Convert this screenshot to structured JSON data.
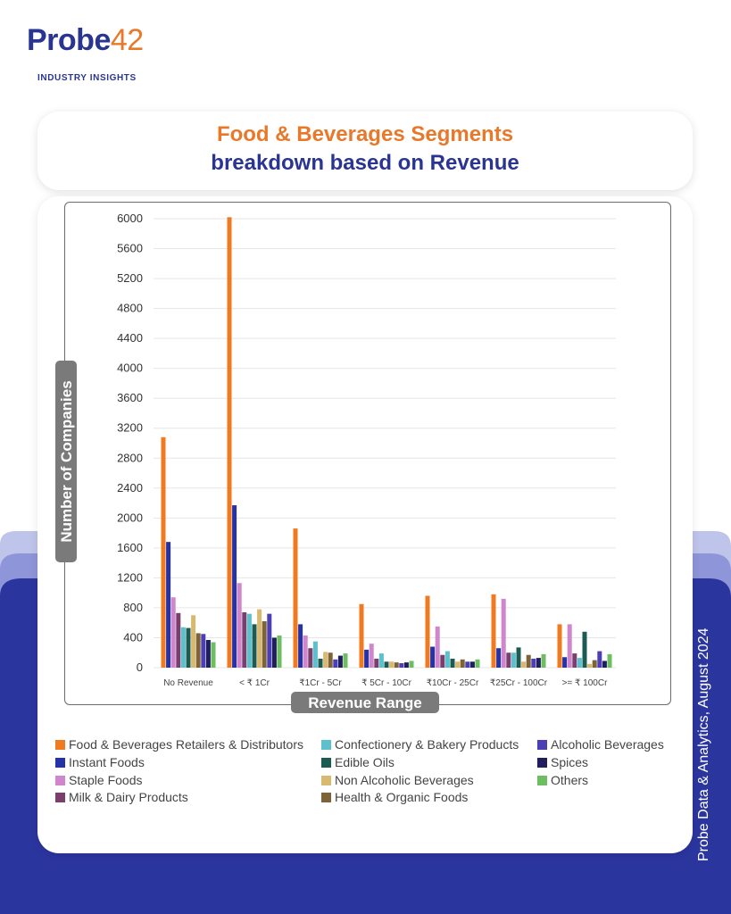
{
  "brand": {
    "logo_prefix": "Probe",
    "logo_number": "42",
    "tagline": "INDUSTRY INSIGHTS"
  },
  "title": {
    "line1": "Food & Beverages Segments",
    "line2": "breakdown based on Revenue"
  },
  "side_caption": "Probe Data & Analytics, August 2024",
  "colors": {
    "brand_blue": "#2a3592",
    "brand_orange": "#e8782a"
  },
  "chart_data": {
    "type": "bar",
    "xlabel": "Revenue Range",
    "ylabel": "Number of Companies",
    "ylim": [
      0,
      6000
    ],
    "yticks": [
      0,
      400,
      800,
      1200,
      1600,
      2000,
      2400,
      2800,
      3200,
      3600,
      4000,
      4400,
      4800,
      5200,
      5600,
      6000
    ],
    "grid": true,
    "legend_position": "bottom",
    "categories": [
      "No Revenue",
      "< ₹ 1Cr",
      "₹1Cr - 5Cr",
      "₹ 5Cr - 10Cr",
      "₹10Cr - 25Cr",
      "₹25Cr - 100Cr",
      ">= ₹ 100Cr"
    ],
    "series": [
      {
        "name": "Food & Beverages Retailers & Distributors",
        "color": "#f07a1f",
        "values": [
          3080,
          6020,
          1860,
          850,
          960,
          980,
          580
        ]
      },
      {
        "name": "Instant Foods",
        "color": "#2532a8",
        "values": [
          1680,
          2170,
          580,
          240,
          280,
          260,
          140
        ]
      },
      {
        "name": "Staple Foods",
        "color": "#cf86cc",
        "values": [
          940,
          1130,
          430,
          320,
          550,
          920,
          580
        ]
      },
      {
        "name": "Milk & Dairy Products",
        "color": "#7b3f6e",
        "values": [
          730,
          740,
          260,
          120,
          170,
          200,
          190
        ]
      },
      {
        "name": "Confectionery & Bakery Products",
        "color": "#5cc1cd",
        "values": [
          540,
          720,
          350,
          190,
          220,
          200,
          130
        ]
      },
      {
        "name": "Edible Oils",
        "color": "#1c5b52",
        "values": [
          530,
          580,
          120,
          80,
          120,
          270,
          480
        ]
      },
      {
        "name": "Non Alcoholic Beverages",
        "color": "#d9b870",
        "values": [
          700,
          780,
          210,
          80,
          80,
          80,
          50
        ]
      },
      {
        "name": "Health & Organic Foods",
        "color": "#7d6336",
        "values": [
          460,
          620,
          200,
          70,
          110,
          170,
          100
        ]
      },
      {
        "name": "Alcoholic Beverages",
        "color": "#4b3fb6",
        "values": [
          450,
          720,
          110,
          60,
          80,
          120,
          220
        ]
      },
      {
        "name": "Spices",
        "color": "#201e5c",
        "values": [
          370,
          400,
          160,
          70,
          80,
          130,
          90
        ]
      },
      {
        "name": "Others",
        "color": "#6dbe60",
        "values": [
          340,
          430,
          190,
          90,
          110,
          180,
          180
        ]
      }
    ]
  },
  "legend_layout": [
    {
      "series": 0,
      "col": 0,
      "row": 0
    },
    {
      "series": 4,
      "col": 1,
      "row": 0
    },
    {
      "series": 8,
      "col": 2,
      "row": 0
    },
    {
      "series": 1,
      "col": 0,
      "row": 1
    },
    {
      "series": 5,
      "col": 1,
      "row": 1
    },
    {
      "series": 9,
      "col": 2,
      "row": 1
    },
    {
      "series": 2,
      "col": 0,
      "row": 2
    },
    {
      "series": 6,
      "col": 1,
      "row": 2
    },
    {
      "series": 10,
      "col": 2,
      "row": 2
    },
    {
      "series": 3,
      "col": 0,
      "row": 3
    },
    {
      "series": 7,
      "col": 1,
      "row": 3
    }
  ]
}
